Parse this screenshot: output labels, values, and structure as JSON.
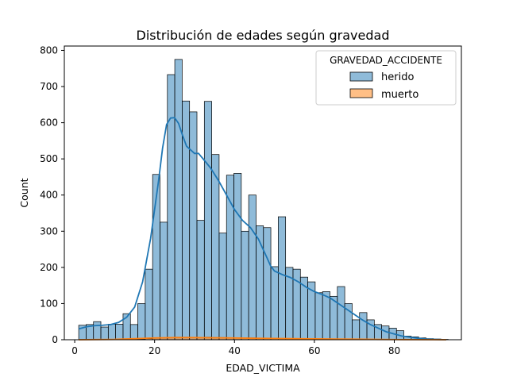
{
  "chart_data": {
    "type": "bar",
    "title": "Distribución de edades según gravedad",
    "xlabel": "EDAD_VICTIMA",
    "ylabel": "Count",
    "xlim": [
      -2.6,
      96.8
    ],
    "ylim": [
      0,
      812
    ],
    "xticks": [
      0,
      20,
      40,
      60,
      80
    ],
    "yticks": [
      0,
      100,
      200,
      300,
      400,
      500,
      600,
      700,
      800
    ],
    "grid": false,
    "legend": {
      "title": "GRAVEDAD_ACCIDENTE",
      "placement": "top-right"
    },
    "bin_edges": [
      1,
      2.85,
      4.7,
      6.55,
      8.4,
      10.25,
      12.1,
      13.95,
      15.8,
      17.65,
      19.5,
      21.35,
      23.2,
      25.05,
      26.9,
      28.75,
      30.6,
      32.45,
      34.3,
      36.15,
      38.0,
      39.85,
      41.7,
      43.55,
      45.4,
      47.25,
      49.1,
      50.95,
      52.8,
      54.65,
      56.5,
      58.35,
      60.2,
      62.05,
      63.9,
      65.75,
      67.6,
      69.45,
      71.3,
      73.15,
      75.0,
      76.85,
      78.7,
      80.55,
      82.4,
      84.25,
      86.1,
      87.95,
      89.8,
      91.65,
      93.5
    ],
    "series": [
      {
        "name": "herido",
        "color": "#1f77b4",
        "values": [
          40,
          42,
          50,
          35,
          43,
          43,
          72,
          42,
          100,
          195,
          457,
          325,
          733,
          775,
          660,
          630,
          330,
          659,
          512,
          295,
          455,
          460,
          300,
          400,
          315,
          310,
          202,
          340,
          200,
          195,
          173,
          160,
          130,
          133,
          120,
          147,
          100,
          55,
          75,
          55,
          42,
          38,
          32,
          25,
          10,
          8,
          5,
          3,
          2,
          1
        ],
        "kde": [
          [
            1,
            30
          ],
          [
            3,
            36
          ],
          [
            5,
            39
          ],
          [
            7,
            40
          ],
          [
            9,
            42
          ],
          [
            11,
            48
          ],
          [
            13,
            62
          ],
          [
            15,
            90
          ],
          [
            17,
            160
          ],
          [
            19,
            280
          ],
          [
            21,
            440
          ],
          [
            22,
            530
          ],
          [
            23,
            595
          ],
          [
            24,
            613
          ],
          [
            25,
            614
          ],
          [
            26,
            598
          ],
          [
            27,
            565
          ],
          [
            28,
            535
          ],
          [
            30,
            515
          ],
          [
            31,
            515
          ],
          [
            32,
            502
          ],
          [
            34,
            475
          ],
          [
            36,
            440
          ],
          [
            38,
            400
          ],
          [
            40,
            360
          ],
          [
            42,
            330
          ],
          [
            44,
            310
          ],
          [
            46,
            278
          ],
          [
            48,
            230
          ],
          [
            49,
            205
          ],
          [
            50,
            190
          ],
          [
            52,
            180
          ],
          [
            54,
            172
          ],
          [
            56,
            160
          ],
          [
            58,
            145
          ],
          [
            60,
            133
          ],
          [
            62,
            125
          ],
          [
            64,
            115
          ],
          [
            66,
            100
          ],
          [
            68,
            85
          ],
          [
            70,
            70
          ],
          [
            72,
            55
          ],
          [
            74,
            42
          ],
          [
            76,
            32
          ],
          [
            78,
            22
          ],
          [
            80,
            16
          ],
          [
            82,
            10
          ],
          [
            84,
            7
          ],
          [
            86,
            4
          ],
          [
            88,
            2
          ],
          [
            90,
            1
          ],
          [
            93,
            0
          ]
        ]
      },
      {
        "name": "muerto",
        "color": "#ff7f0e",
        "values": [
          0,
          0,
          0,
          0,
          0,
          0,
          1,
          1,
          2,
          3,
          4,
          5,
          6,
          7,
          7,
          6,
          6,
          7,
          6,
          6,
          5,
          5,
          5,
          5,
          4,
          4,
          4,
          3,
          3,
          3,
          3,
          3,
          2,
          2,
          2,
          2,
          2,
          1,
          1,
          1,
          1,
          1,
          1,
          0,
          0,
          0,
          0,
          0,
          0,
          0
        ],
        "kde": [
          [
            1,
            0
          ],
          [
            10,
            1
          ],
          [
            15,
            3
          ],
          [
            20,
            5
          ],
          [
            25,
            6
          ],
          [
            30,
            6
          ],
          [
            35,
            5.5
          ],
          [
            40,
            5
          ],
          [
            45,
            4
          ],
          [
            50,
            3.5
          ],
          [
            55,
            3
          ],
          [
            60,
            2.5
          ],
          [
            65,
            2
          ],
          [
            70,
            1.5
          ],
          [
            75,
            1
          ],
          [
            80,
            0.5
          ],
          [
            85,
            0.2
          ],
          [
            93,
            0
          ]
        ]
      }
    ]
  }
}
